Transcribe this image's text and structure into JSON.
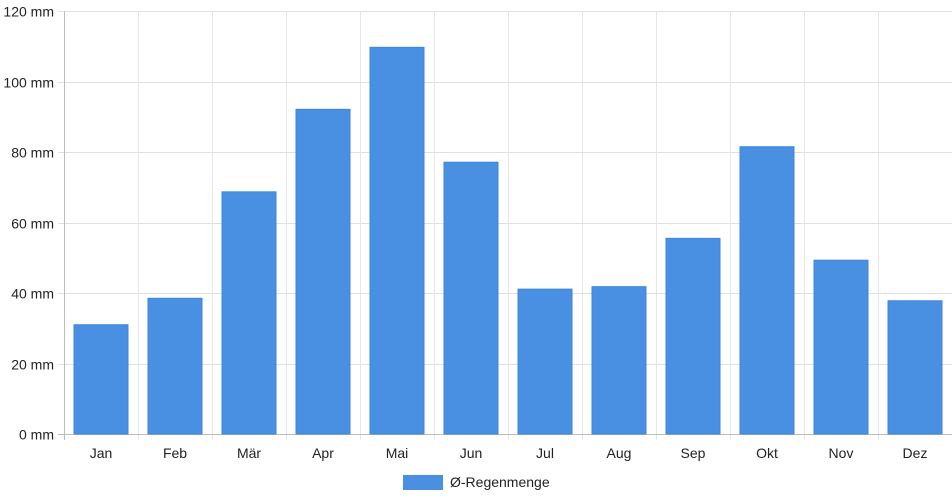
{
  "chart_data": {
    "type": "bar",
    "categories": [
      "Jan",
      "Feb",
      "Mär",
      "Apr",
      "Mai",
      "Jun",
      "Jul",
      "Aug",
      "Sep",
      "Okt",
      "Nov",
      "Dez"
    ],
    "series": [
      {
        "name": "Ø-Regenmenge",
        "values": [
          31,
          38.5,
          68.7,
          92.1,
          109.7,
          77.1,
          41.1,
          41.8,
          55.5,
          81.5,
          49.3,
          37.8
        ],
        "color": "#4a90e2"
      }
    ],
    "title": "",
    "xlabel": "",
    "ylabel": "",
    "ylim": [
      0,
      120
    ],
    "yticks": [
      0,
      20,
      40,
      60,
      80,
      100,
      120
    ],
    "ytick_labels": [
      "0 mm",
      "20 mm",
      "40 mm",
      "60 mm",
      "80 mm",
      "100 mm",
      "120 mm"
    ],
    "grid": true,
    "legend_position": "bottom"
  }
}
